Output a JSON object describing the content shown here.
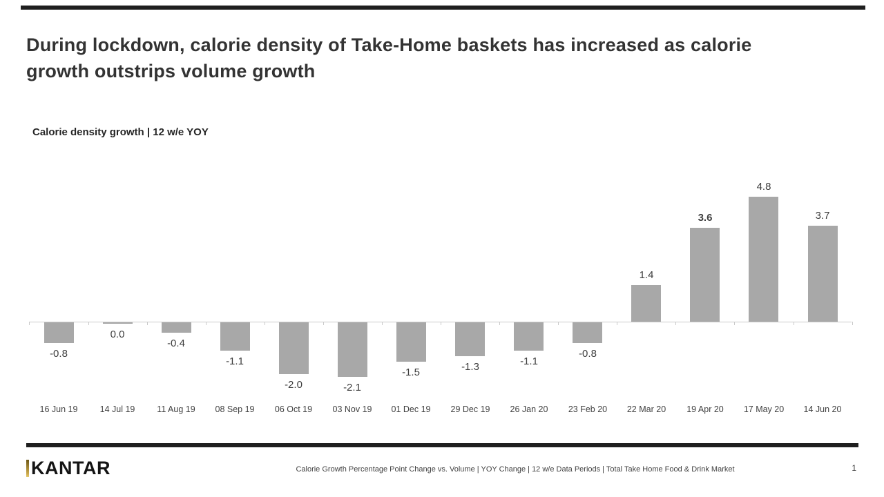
{
  "slide": {
    "title_lines": {
      "0": "During lockdown, calorie density of Take-Home baskets has increased as calorie",
      "1": "growth outstrips volume growth"
    },
    "subtitle": "Calorie density growth | 12 w/e YOY",
    "footer": {
      "brand": "KANTAR",
      "source_line": "Calorie Growth Percentage Point Change vs. Volume | YOY Change  | 12 w/e Data Periods | Total Take Home Food & Drink Market",
      "page_number": "1"
    }
  },
  "chart_data": {
    "type": "bar",
    "title": "Calorie density growth | 12 w/e YOY",
    "categories": [
      "16 Jun 19",
      "14 Jul 19",
      "11 Aug 19",
      "08 Sep 19",
      "06 Oct 19",
      "03 Nov 19",
      "01 Dec 19",
      "29 Dec 19",
      "26 Jan 20",
      "23 Feb 20",
      "22 Mar 20",
      "19 Apr 20",
      "17 May 20",
      "14 Jun 20"
    ],
    "values": [
      -0.8,
      0.0,
      -0.4,
      -1.1,
      -2.0,
      -2.1,
      -1.5,
      -1.3,
      -1.1,
      -0.8,
      1.4,
      3.6,
      4.8,
      3.7
    ],
    "value_labels": [
      "-0.8",
      "0.0",
      "-0.4",
      "-1.1",
      "-2.0",
      "-2.1",
      "-1.5",
      "-1.3",
      "-1.1",
      "-0.8",
      "1.4",
      "3.6",
      "4.8",
      "3.7"
    ],
    "bold_label_index": 11,
    "xlabel": "",
    "ylabel": "",
    "ylim": [
      -2.5,
      5.2
    ],
    "gridlines": false,
    "legend": "none",
    "label_position": "outside-end",
    "colors": {
      "bar": "#a8a8a8",
      "value_label": "#3d3d3d",
      "category_label": "#404040",
      "axis": "#c9c9c9"
    }
  }
}
